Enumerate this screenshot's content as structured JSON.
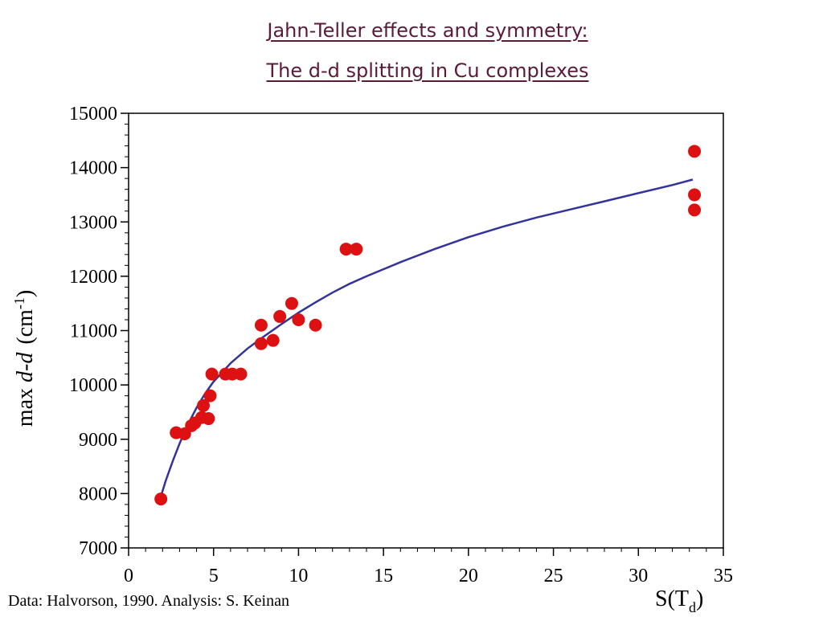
{
  "title_line1": "Jahn-Teller effects and symmetry:",
  "title_line2": "The d-d splitting in Cu complexes",
  "credit": "Data: Halvorson, 1990. Analysis: S. Keinan",
  "chart_data": {
    "type": "scatter",
    "ylabel_prefix": "max ",
    "ylabel_italic": "d-d",
    "ylabel_unit_base": "(cm",
    "ylabel_unit_sup": "-1",
    "ylabel_unit_close": ")",
    "xlabel_base": "S(T",
    "xlabel_sub": "d",
    "xlabel_close": ")",
    "xlim": [
      0,
      35
    ],
    "ylim": [
      7000,
      15000
    ],
    "xticks": [
      0,
      5,
      10,
      15,
      20,
      25,
      30,
      35
    ],
    "yticks": [
      7000,
      8000,
      9000,
      10000,
      11000,
      12000,
      13000,
      14000,
      15000
    ],
    "x_minor_step": 1,
    "y_minor_step": 200,
    "grid": false,
    "marker_color": "#dd1111",
    "line_color": "#333399",
    "points": [
      {
        "x": 1.9,
        "y": 7900
      },
      {
        "x": 2.8,
        "y": 9120
      },
      {
        "x": 3.3,
        "y": 9100
      },
      {
        "x": 3.7,
        "y": 9250
      },
      {
        "x": 3.9,
        "y": 9300
      },
      {
        "x": 4.3,
        "y": 9400
      },
      {
        "x": 4.4,
        "y": 9620
      },
      {
        "x": 4.7,
        "y": 9380
      },
      {
        "x": 4.8,
        "y": 9800
      },
      {
        "x": 4.9,
        "y": 10200
      },
      {
        "x": 5.7,
        "y": 10200
      },
      {
        "x": 6.1,
        "y": 10200
      },
      {
        "x": 6.6,
        "y": 10200
      },
      {
        "x": 7.8,
        "y": 11100
      },
      {
        "x": 7.8,
        "y": 10760
      },
      {
        "x": 8.5,
        "y": 10820
      },
      {
        "x": 8.9,
        "y": 11260
      },
      {
        "x": 9.6,
        "y": 11500
      },
      {
        "x": 10.0,
        "y": 11200
      },
      {
        "x": 11.0,
        "y": 11100
      },
      {
        "x": 12.8,
        "y": 12500
      },
      {
        "x": 13.4,
        "y": 12500
      },
      {
        "x": 33.3,
        "y": 14300
      },
      {
        "x": 33.3,
        "y": 13500
      },
      {
        "x": 33.3,
        "y": 13220
      }
    ],
    "fit_curve": {
      "x": [
        1.9,
        2.2,
        2.6,
        3.0,
        3.5,
        4.0,
        4.5,
        5.0,
        6.0,
        7.0,
        8.0,
        9.0,
        10.0,
        11.0,
        12.0,
        13.0,
        14.0,
        15.0,
        16.0,
        18.0,
        20.0,
        22.0,
        24.0,
        26.0,
        28.0,
        30.0,
        32.0,
        33.2
      ],
      "y": [
        7950,
        8250,
        8600,
        8920,
        9280,
        9580,
        9840,
        10060,
        10400,
        10670,
        10900,
        11120,
        11330,
        11520,
        11700,
        11860,
        12000,
        12130,
        12260,
        12500,
        12720,
        12910,
        13080,
        13230,
        13380,
        13530,
        13680,
        13780
      ]
    }
  }
}
